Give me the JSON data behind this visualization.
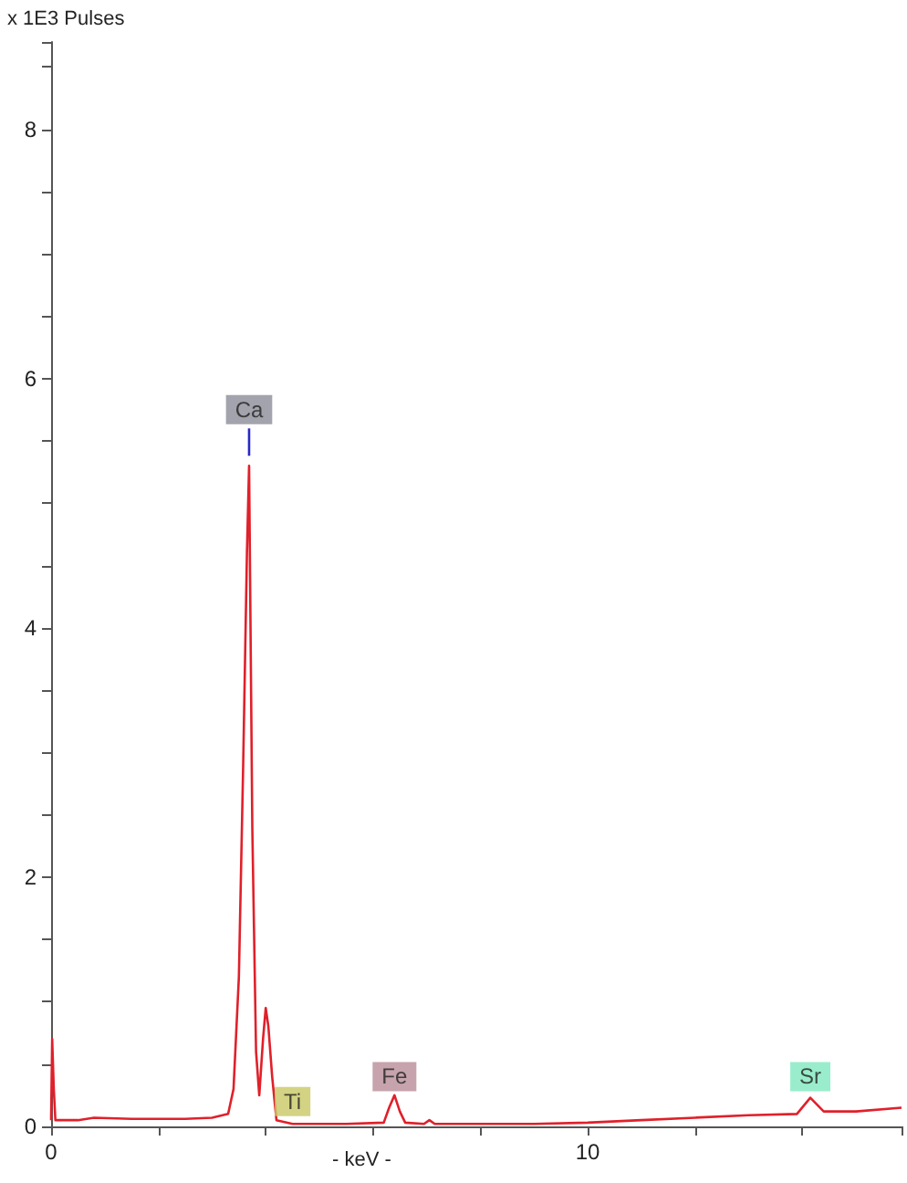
{
  "chart_data": {
    "type": "line",
    "xlabel": "- keV -",
    "ylabel": "x 1E3 Pulses",
    "x": [
      0,
      0.02,
      0.05,
      0.08,
      0.5,
      0.8,
      1.5,
      2.5,
      3.0,
      3.3,
      3.4,
      3.5,
      3.58,
      3.65,
      3.69,
      3.75,
      3.82,
      3.88,
      3.95,
      4.0,
      4.05,
      4.12,
      4.2,
      4.5,
      5.5,
      6.2,
      6.3,
      6.4,
      6.5,
      6.6,
      6.95,
      7.05,
      7.15,
      8,
      9,
      10,
      11,
      12,
      13,
      13.9,
      14.15,
      14.4,
      15,
      15.85
    ],
    "series": [
      {
        "color": "#e0202a",
        "values": [
          0.05,
          0.7,
          0.3,
          0.05,
          0.05,
          0.07,
          0.06,
          0.06,
          0.07,
          0.1,
          0.3,
          1.2,
          2.9,
          4.6,
          5.3,
          2.4,
          0.6,
          0.25,
          0.7,
          0.95,
          0.8,
          0.4,
          0.05,
          0.02,
          0.02,
          0.03,
          0.15,
          0.25,
          0.12,
          0.03,
          0.02,
          0.05,
          0.02,
          0.02,
          0.02,
          0.03,
          0.05,
          0.07,
          0.09,
          0.1,
          0.23,
          0.12,
          0.12,
          0.15
        ]
      },
      {
        "color": "#2828c8",
        "x": [
          3.69,
          3.69
        ],
        "values": [
          5.38,
          5.6
        ]
      }
    ],
    "annotations": [
      {
        "text": "Ca",
        "x": 3.69,
        "y": 5.75
      },
      {
        "text": "Ti",
        "x": 4.5,
        "y": 0.2
      },
      {
        "text": "Fe",
        "x": 6.4,
        "y": 0.4
      },
      {
        "text": "Sr",
        "x": 14.15,
        "y": 0.4
      }
    ],
    "xlim": [
      0,
      15.85
    ],
    "ylim": [
      0,
      8.7
    ],
    "xticks": [
      0,
      10
    ],
    "yticks": [
      0,
      2,
      4,
      6,
      8
    ],
    "grid": false,
    "marker": "none",
    "line_style": "solid"
  }
}
